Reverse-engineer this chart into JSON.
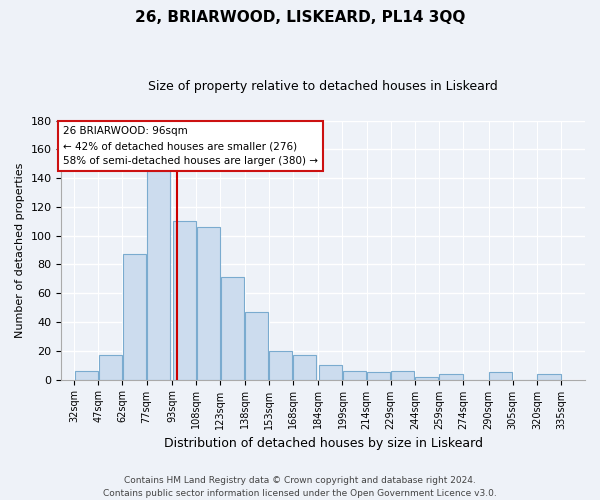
{
  "title": "26, BRIARWOOD, LISKEARD, PL14 3QQ",
  "subtitle": "Size of property relative to detached houses in Liskeard",
  "xlabel": "Distribution of detached houses by size in Liskeard",
  "ylabel": "Number of detached properties",
  "bar_left_edges": [
    32,
    47,
    62,
    77,
    93,
    108,
    123,
    138,
    153,
    168,
    184,
    199,
    214,
    229,
    244,
    259,
    274,
    290,
    305,
    320
  ],
  "bar_heights": [
    6,
    17,
    87,
    145,
    110,
    106,
    71,
    47,
    20,
    17,
    10,
    6,
    5,
    6,
    2,
    4,
    0,
    5,
    0,
    4
  ],
  "bar_widths": [
    15,
    15,
    15,
    15,
    15,
    15,
    15,
    15,
    15,
    15,
    15,
    15,
    15,
    15,
    15,
    15,
    15,
    15,
    15,
    15
  ],
  "tick_labels": [
    "32sqm",
    "47sqm",
    "62sqm",
    "77sqm",
    "93sqm",
    "108sqm",
    "123sqm",
    "138sqm",
    "153sqm",
    "168sqm",
    "184sqm",
    "199sqm",
    "214sqm",
    "229sqm",
    "244sqm",
    "259sqm",
    "274sqm",
    "290sqm",
    "305sqm",
    "320sqm",
    "335sqm"
  ],
  "tick_positions": [
    32,
    47,
    62,
    77,
    93,
    108,
    123,
    138,
    153,
    168,
    184,
    199,
    214,
    229,
    244,
    259,
    274,
    290,
    305,
    320,
    335
  ],
  "bar_color": "#ccdcee",
  "bar_edge_color": "#7aabcf",
  "vline_x": 96,
  "vline_color": "#cc0000",
  "ylim": [
    0,
    180
  ],
  "yticks": [
    0,
    20,
    40,
    60,
    80,
    100,
    120,
    140,
    160,
    180
  ],
  "xlim": [
    24,
    350
  ],
  "annotation_title": "26 BRIARWOOD: 96sqm",
  "annotation_line1": "← 42% of detached houses are smaller (276)",
  "annotation_line2": "58% of semi-detached houses are larger (380) →",
  "footer_line1": "Contains HM Land Registry data © Crown copyright and database right 2024.",
  "footer_line2": "Contains public sector information licensed under the Open Government Licence v3.0.",
  "background_color": "#eef2f8",
  "plot_bg_color": "#eef2f8",
  "grid_color": "#ffffff",
  "title_fontsize": 11,
  "subtitle_fontsize": 9,
  "xlabel_fontsize": 9,
  "ylabel_fontsize": 8,
  "tick_fontsize": 7,
  "footer_fontsize": 6.5
}
